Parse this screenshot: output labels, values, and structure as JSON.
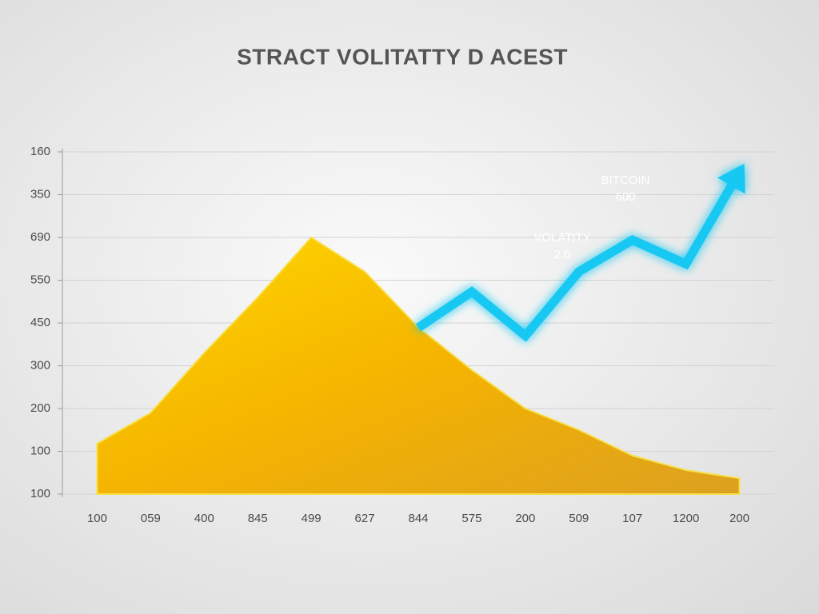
{
  "chart_data": {
    "type": "area",
    "title": "STRACT VOLITATTY D ACEST",
    "categories": [
      "100",
      "059",
      "400",
      "845",
      "499",
      "627",
      "844",
      "575",
      "200",
      "509",
      "107",
      "1200",
      "200"
    ],
    "ylim": [
      0,
      8
    ],
    "yticks": [
      {
        "value": 0,
        "label": "100"
      },
      {
        "value": 1,
        "label": "100"
      },
      {
        "value": 2,
        "label": "200"
      },
      {
        "value": 3,
        "label": "300"
      },
      {
        "value": 4,
        "label": "450"
      },
      {
        "value": 5,
        "label": "550"
      },
      {
        "value": 6,
        "label": "690"
      },
      {
        "value": 7,
        "label": "350"
      },
      {
        "value": 8,
        "label": "160"
      }
    ],
    "grid": true,
    "series": [
      {
        "type": "area",
        "color": "#f5b400",
        "values": [
          1.18,
          1.9,
          3.3,
          4.6,
          6.0,
          5.2,
          3.9,
          2.9,
          2.0,
          1.5,
          0.9,
          0.56,
          0.37
        ]
      },
      {
        "type": "line",
        "color": "#19c8f2",
        "values": [
          null,
          null,
          null,
          null,
          null,
          null,
          3.89,
          4.73,
          3.7,
          5.2,
          5.94,
          5.38,
          7.53
        ]
      }
    ],
    "annotations": [
      [
        "VOLATITY",
        "2.0"
      ],
      [
        "BITCOIN",
        "600"
      ]
    ]
  }
}
